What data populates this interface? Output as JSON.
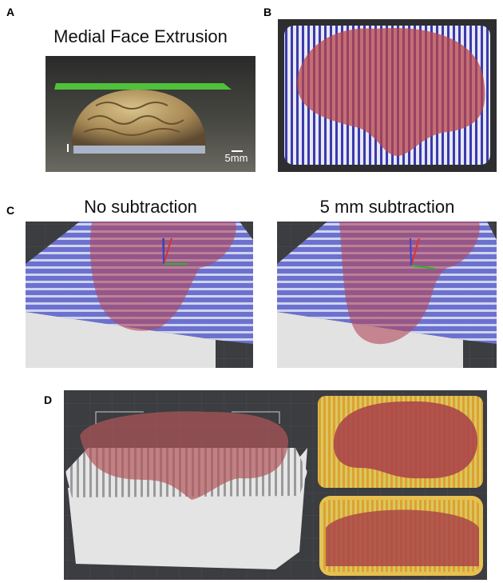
{
  "panel_a": {
    "label": "A",
    "title": "Medial Face Extrusion",
    "scale_bar": "5mm"
  },
  "panel_b": {
    "label": "B"
  },
  "panel_c": {
    "label": "C",
    "left_title": "No subtraction",
    "right_title": "5 mm subtraction"
  },
  "panel_d": {
    "label": "D"
  }
}
